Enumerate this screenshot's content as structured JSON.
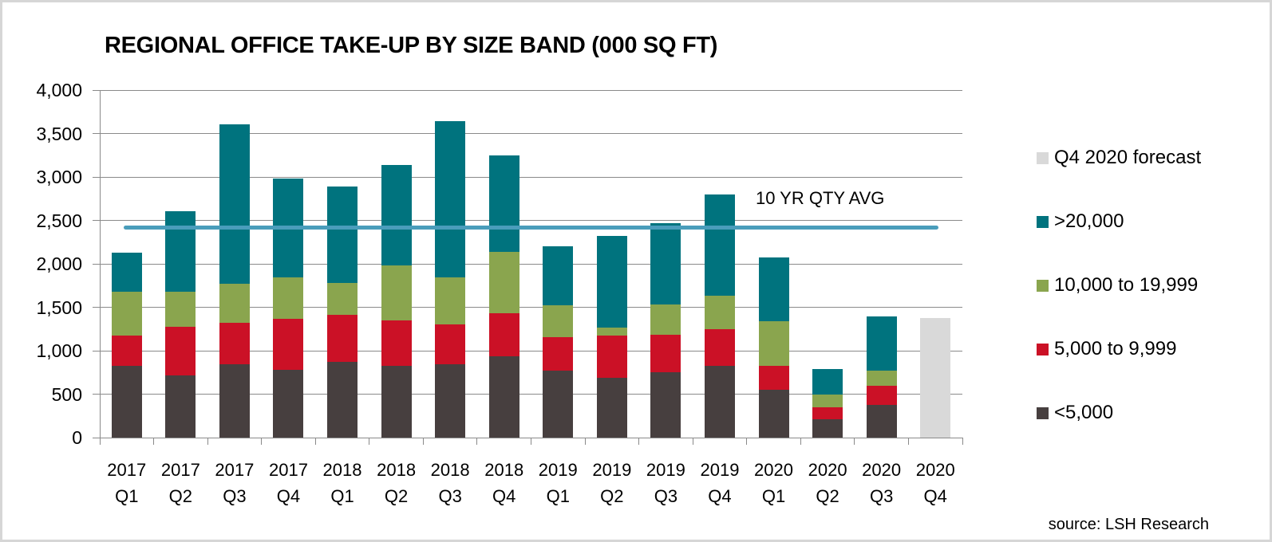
{
  "title": "REGIONAL OFFICE TAKE-UP BY SIZE BAND (000 SQ FT)",
  "source": "source: LSH Research",
  "chart_data": {
    "type": "bar",
    "stacked": true,
    "title": "REGIONAL OFFICE TAKE-UP BY SIZE BAND (000 SQ FT)",
    "unit": "000 sq ft",
    "grid": true,
    "legend_position": "right",
    "categories": [
      "2017 Q1",
      "2017 Q2",
      "2017 Q3",
      "2017 Q4",
      "2018 Q1",
      "2018 Q2",
      "2018 Q3",
      "2018 Q4",
      "2019 Q1",
      "2019 Q2",
      "2019 Q3",
      "2019 Q4",
      "2020 Q1",
      "2020 Q2",
      "2020 Q3",
      "2020 Q4"
    ],
    "y_axis": {
      "min": 0,
      "max": 4000,
      "step": 500,
      "tick_labels": [
        "4,000",
        "3,500",
        "3,000",
        "2,500",
        "2,000",
        "1,500",
        "1,000",
        "500",
        "0"
      ]
    },
    "series": [
      {
        "name": "<5,000",
        "color": "#473F3F",
        "values": [
          825,
          715,
          845,
          780,
          870,
          825,
          840,
          940,
          775,
          685,
          755,
          825,
          550,
          210,
          380,
          0
        ]
      },
      {
        "name": "5,000 to 9,999",
        "color": "#CB1126",
        "values": [
          345,
          560,
          475,
          590,
          545,
          520,
          460,
          495,
          385,
          485,
          430,
          420,
          275,
          140,
          215,
          0
        ]
      },
      {
        "name": "10,000 to 19,999",
        "color": "#8AA54E",
        "values": [
          505,
          400,
          455,
          470,
          365,
          635,
          545,
          700,
          360,
          100,
          350,
          390,
          510,
          145,
          175,
          0
        ]
      },
      {
        "name": ">20,000",
        "color": "#00737E",
        "values": [
          450,
          935,
          1830,
          1140,
          1110,
          1160,
          1795,
          1115,
          685,
          1055,
          935,
          1160,
          735,
          295,
          620,
          0
        ]
      }
    ],
    "forecast_series": {
      "name": "Q4 2020 forecast",
      "color": "#D9D9D9",
      "values": [
        0,
        0,
        0,
        0,
        0,
        0,
        0,
        0,
        0,
        0,
        0,
        0,
        0,
        0,
        0,
        1375
      ]
    },
    "totals": [
      2125,
      2610,
      3605,
      2980,
      2890,
      3140,
      3640,
      3250,
      2205,
      2325,
      2470,
      2795,
      2070,
      790,
      1390,
      1375
    ],
    "avg_line": {
      "label": "10 YR QTY AVG",
      "value": 2420,
      "color": "#4A9DBB"
    },
    "legend": [
      {
        "label": "Q4 2020 forecast",
        "color": "#D9D9D9"
      },
      {
        "label": ">20,000",
        "color": "#00737E"
      },
      {
        "label": "10,000 to 19,999",
        "color": "#8AA54E"
      },
      {
        "label": "5,000 to 9,999",
        "color": "#CB1126"
      },
      {
        "label": "<5,000",
        "color": "#473F3F"
      }
    ],
    "colors": {
      "gridline": "#8A8A8A",
      "axis": "#8A8A8A",
      "border": "#D6D6D6",
      "background": "#FFFFFF"
    }
  }
}
